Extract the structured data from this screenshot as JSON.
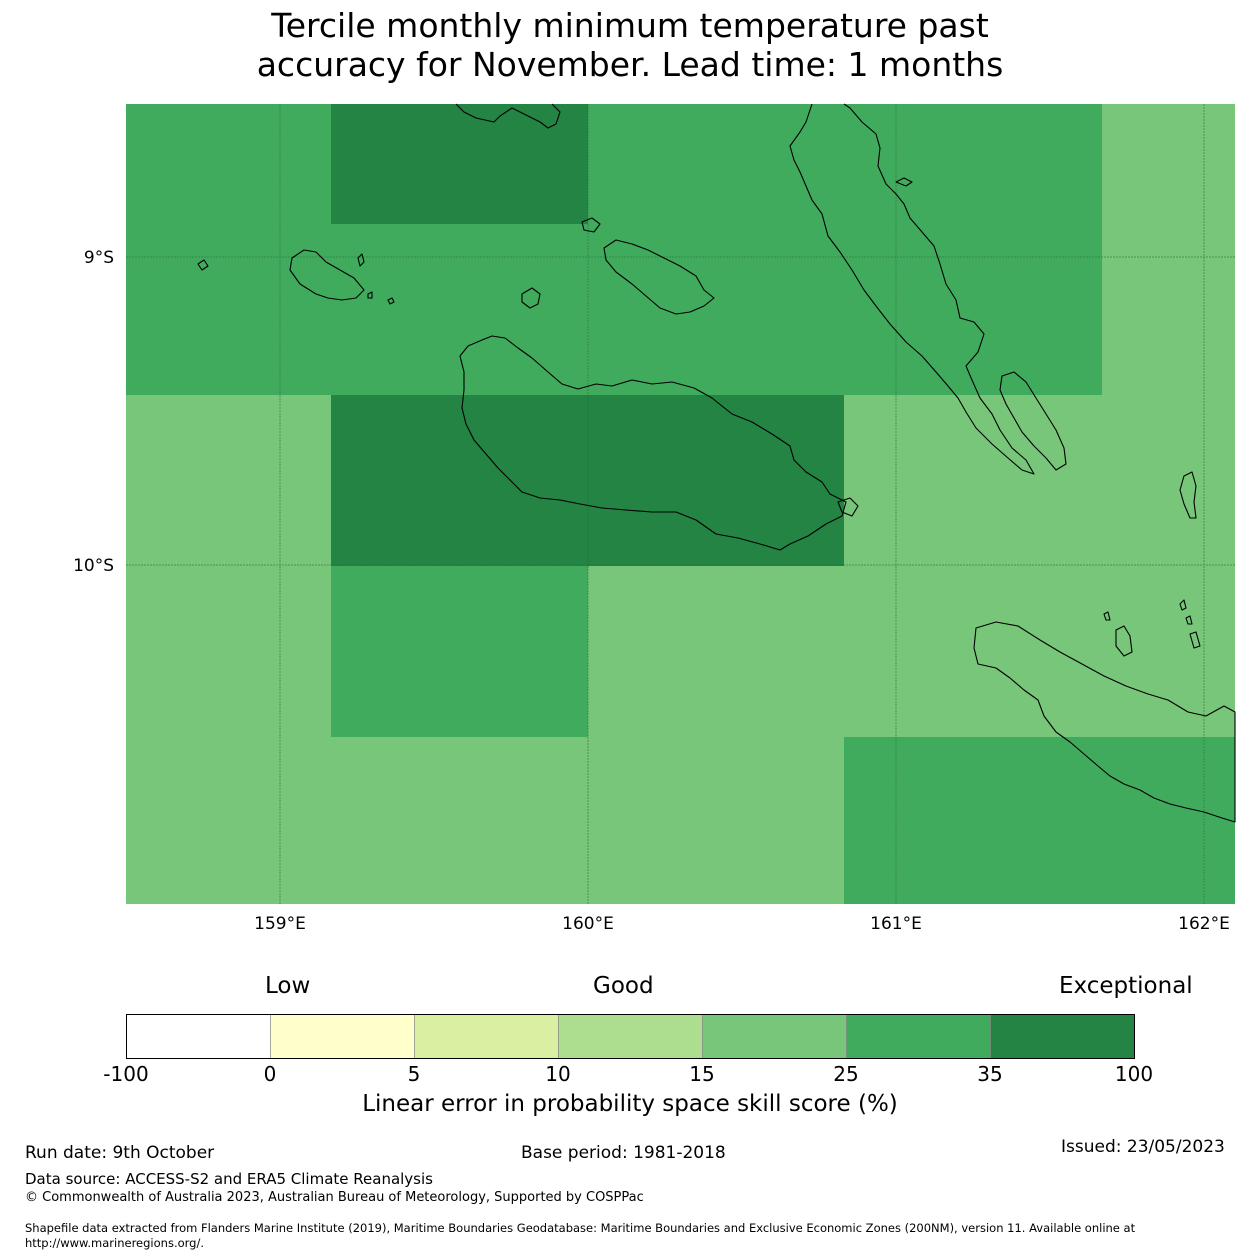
{
  "title": {
    "line1": "Tercile monthly minimum temperature past",
    "line2": "accuracy for November. Lead time: 1 months"
  },
  "map": {
    "lat_labels": [
      "9°S",
      "10°S"
    ],
    "lon_labels": [
      "159°E",
      "160°E",
      "161°E",
      "162°E"
    ],
    "cell_colors": {
      "35-100": "#238443",
      "25-35": "#41ab5d",
      "15-25": "#78c679"
    }
  },
  "legend": {
    "categories": [
      "Low",
      "Good",
      "Exceptional"
    ],
    "ticks": [
      "-100",
      "0",
      "5",
      "10",
      "15",
      "25",
      "35",
      "100"
    ],
    "colors": [
      "#ffffff",
      "#ffffcc",
      "#d9f0a3",
      "#addd8e",
      "#78c679",
      "#41ab5d",
      "#238443"
    ],
    "label": "Linear error in probability space skill score (%)"
  },
  "footer": {
    "run_date": "Run date: 9th October",
    "base_period": "Base period: 1981-2018",
    "issued": "Issued: 23/05/2023",
    "data_source": "Data source: ACCESS-S2 and ERA5 Climate Reanalysis",
    "copyright": "© Commonwealth of Australia 2023, Australian Bureau of Meteorology, Supported by COSPPac",
    "shapefile_1": "Shapefile data extracted from Flanders Marine Institute (2019), Maritime Boundaries Geodatabase: Maritime Boundaries and Exclusive Economic Zones (200NM), version 11. Available online at",
    "shapefile_2": "http://www.marineregions.org/."
  }
}
